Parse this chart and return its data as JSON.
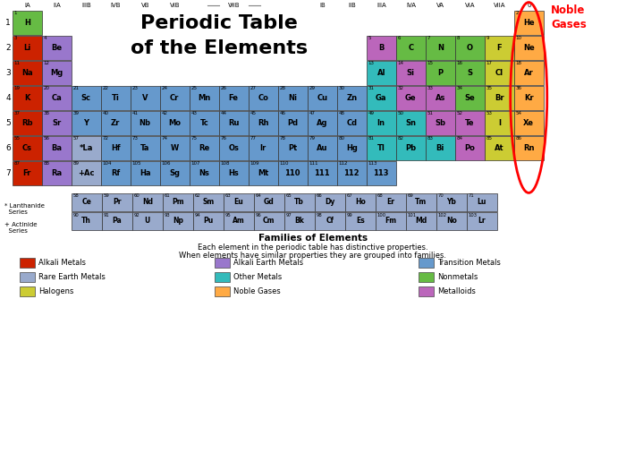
{
  "title_line1": "Periodic Table",
  "title_line2": "of the Elements",
  "colors": {
    "alkali_metal": "#cc2200",
    "alkaline_earth": "#9977cc",
    "transition_metal": "#6699cc",
    "nonmetal": "#66bb44",
    "halogen": "#cccc33",
    "noble_gas": "#ffaa44",
    "metalloid": "#bb66bb",
    "other_metal": "#33bbbb",
    "rare_earth": "#99aacc",
    "border": "#444444",
    "background": "#ffffff"
  },
  "families_title": "Families of Elements",
  "families_text1": "Each element in the periodic table has distinctive properties.",
  "families_text2": "When elements have similar properties they are grouped into families.",
  "legend_items": [
    {
      "label": "Alkali Metals",
      "color": "#cc2200",
      "row": 0,
      "col": 0
    },
    {
      "label": "Alkali Earth Metals",
      "color": "#9977cc",
      "row": 0,
      "col": 1
    },
    {
      "label": "Transition Metals",
      "color": "#6699cc",
      "row": 0,
      "col": 2
    },
    {
      "label": "Rare Earth Metals",
      "color": "#99aacc",
      "row": 1,
      "col": 0
    },
    {
      "label": "Other Metals",
      "color": "#33bbbb",
      "row": 1,
      "col": 1
    },
    {
      "label": "Nonmetals",
      "color": "#66bb44",
      "row": 1,
      "col": 2
    },
    {
      "label": "Halogens",
      "color": "#cccc33",
      "row": 2,
      "col": 0
    },
    {
      "label": "Noble Gases",
      "color": "#ffaa44",
      "row": 2,
      "col": 1
    },
    {
      "label": "Metalloids",
      "color": "#bb66bb",
      "row": 2,
      "col": 2
    }
  ]
}
